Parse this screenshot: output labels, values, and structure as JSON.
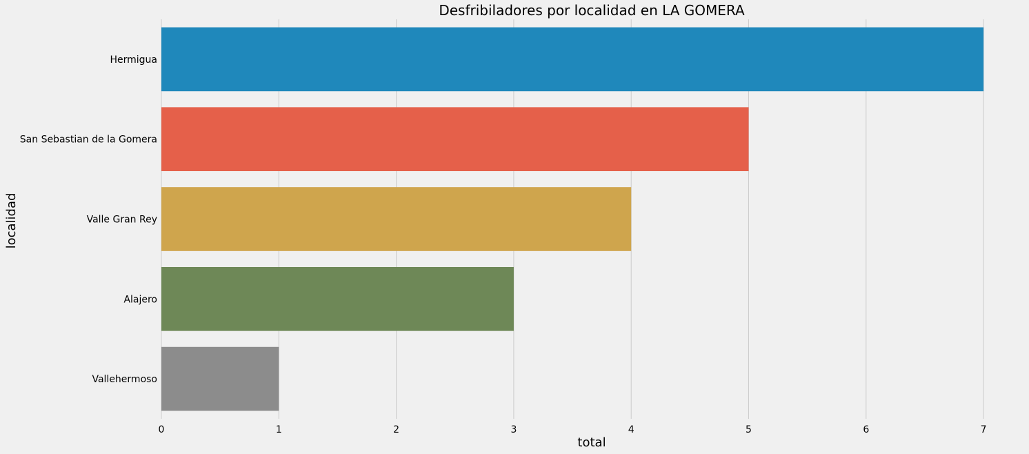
{
  "chart_data": {
    "type": "bar",
    "orientation": "horizontal",
    "title": "Desfribiladores por localidad en LA GOMERA",
    "xlabel": "total",
    "ylabel": "localidad",
    "categories": [
      "Hermigua",
      "San Sebastian de la Gomera",
      "Valle Gran Rey",
      "Alajero",
      "Vallehermoso"
    ],
    "values": [
      7,
      5,
      4,
      3,
      1
    ],
    "colors": [
      "#1f88bb",
      "#e5604a",
      "#cfa54d",
      "#6e8857",
      "#8c8c8c"
    ],
    "xlim": [
      0,
      7.2
    ],
    "xticks": [
      0,
      1,
      2,
      3,
      4,
      5,
      6,
      7
    ],
    "grid": true,
    "background": "#f0f0f0"
  }
}
